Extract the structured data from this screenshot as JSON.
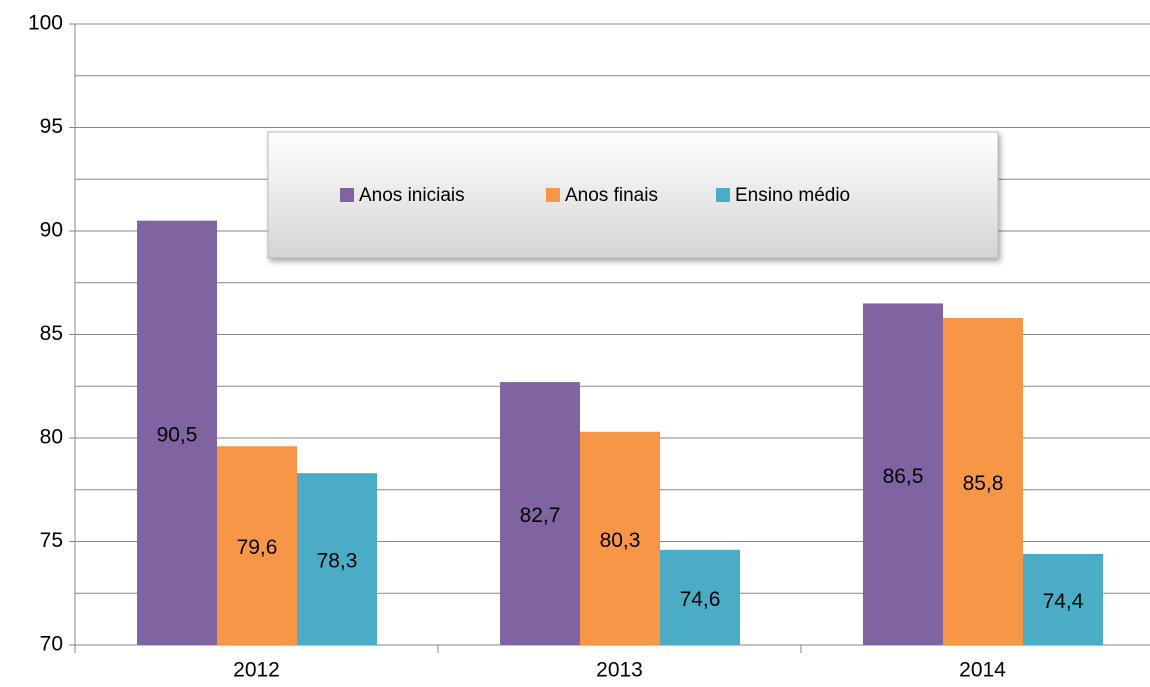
{
  "chart_data": {
    "type": "bar",
    "categories": [
      "2012",
      "2013",
      "2014"
    ],
    "series": [
      {
        "name": "Anos iniciais",
        "color": "#8064a2",
        "values": [
          90.5,
          82.7,
          86.5
        ],
        "value_labels": [
          "90,5",
          "82,7",
          "86,5"
        ]
      },
      {
        "name": "Anos finais",
        "color": "#f79646",
        "values": [
          79.6,
          80.3,
          85.8
        ],
        "value_labels": [
          "79,6",
          "80,3",
          "85,8"
        ]
      },
      {
        "name": "Ensino médio",
        "color": "#4bacc6",
        "values": [
          78.3,
          74.6,
          74.4
        ],
        "value_labels": [
          "78,3",
          "74,6",
          "74,4"
        ]
      }
    ],
    "ylim": [
      70,
      100
    ],
    "yticks": [
      70,
      75,
      80,
      85,
      90,
      95,
      100
    ],
    "yminor": [
      72.5,
      77.5,
      82.5,
      87.5,
      92.5,
      97.5
    ],
    "grid": true,
    "legend": "top"
  }
}
